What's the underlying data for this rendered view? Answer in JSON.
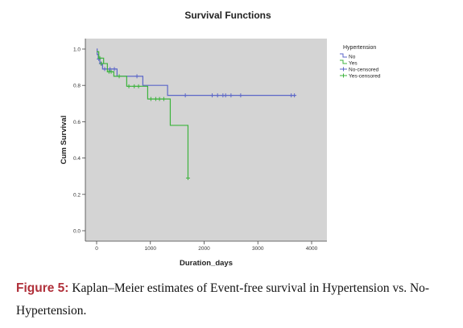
{
  "chart_data": {
    "type": "line",
    "step": true,
    "title": "Survival Functions",
    "xlabel": "Duration_days",
    "ylabel": "Cum Survival",
    "xlim": [
      -100,
      4000
    ],
    "ylim": [
      0,
      1.0
    ],
    "x_ticks": [
      0,
      1000,
      2000,
      3000,
      4000
    ],
    "y_ticks": [
      0.0,
      0.2,
      0.4,
      0.6,
      0.8,
      1.0
    ],
    "y_tick_labels": [
      "0.0",
      "0.2",
      "0.4",
      "0.6",
      "0.8",
      "1.0"
    ],
    "grid": false,
    "background": "#d4d4d4",
    "legend": {
      "title": "Hypertension",
      "placement": "right",
      "entries": [
        {
          "label": "No",
          "kind": "line",
          "series": "No"
        },
        {
          "label": "Yes",
          "kind": "line",
          "series": "Yes"
        },
        {
          "label": "No-censored",
          "kind": "censor",
          "series": "No"
        },
        {
          "label": "Yes-censored",
          "kind": "censor",
          "series": "Yes"
        }
      ]
    },
    "series": [
      {
        "name": "No",
        "color": "#5b66c8",
        "steps": [
          [
            0,
            1.0
          ],
          [
            10,
            0.97
          ],
          [
            30,
            0.945
          ],
          [
            60,
            0.92
          ],
          [
            110,
            0.89
          ],
          [
            380,
            0.85
          ],
          [
            860,
            0.8
          ],
          [
            1320,
            0.745
          ],
          [
            3700,
            0.745
          ]
        ],
        "censored": [
          [
            40,
            0.945
          ],
          [
            80,
            0.92
          ],
          [
            150,
            0.89
          ],
          [
            250,
            0.89
          ],
          [
            330,
            0.89
          ],
          [
            750,
            0.85
          ],
          [
            1650,
            0.745
          ],
          [
            2150,
            0.745
          ],
          [
            2250,
            0.745
          ],
          [
            2350,
            0.745
          ],
          [
            2400,
            0.745
          ],
          [
            2500,
            0.745
          ],
          [
            2680,
            0.745
          ],
          [
            3620,
            0.745
          ],
          [
            3680,
            0.745
          ]
        ]
      },
      {
        "name": "Yes",
        "color": "#3cb33c",
        "steps": [
          [
            0,
            0.985
          ],
          [
            40,
            0.95
          ],
          [
            130,
            0.92
          ],
          [
            200,
            0.875
          ],
          [
            320,
            0.85
          ],
          [
            560,
            0.795
          ],
          [
            950,
            0.725
          ],
          [
            1370,
            0.58
          ],
          [
            1700,
            0.29
          ]
        ],
        "censored": [
          [
            60,
            0.95
          ],
          [
            90,
            0.92
          ],
          [
            230,
            0.875
          ],
          [
            270,
            0.875
          ],
          [
            420,
            0.85
          ],
          [
            600,
            0.795
          ],
          [
            700,
            0.795
          ],
          [
            780,
            0.795
          ],
          [
            1010,
            0.725
          ],
          [
            1100,
            0.725
          ],
          [
            1170,
            0.725
          ],
          [
            1250,
            0.725
          ],
          [
            1700,
            0.29
          ]
        ]
      }
    ]
  },
  "caption": {
    "label": "Figure 5:",
    "text": "Kaplan–Meier estimates of Event-free survival in Hypertension vs. No-Hypertension."
  }
}
